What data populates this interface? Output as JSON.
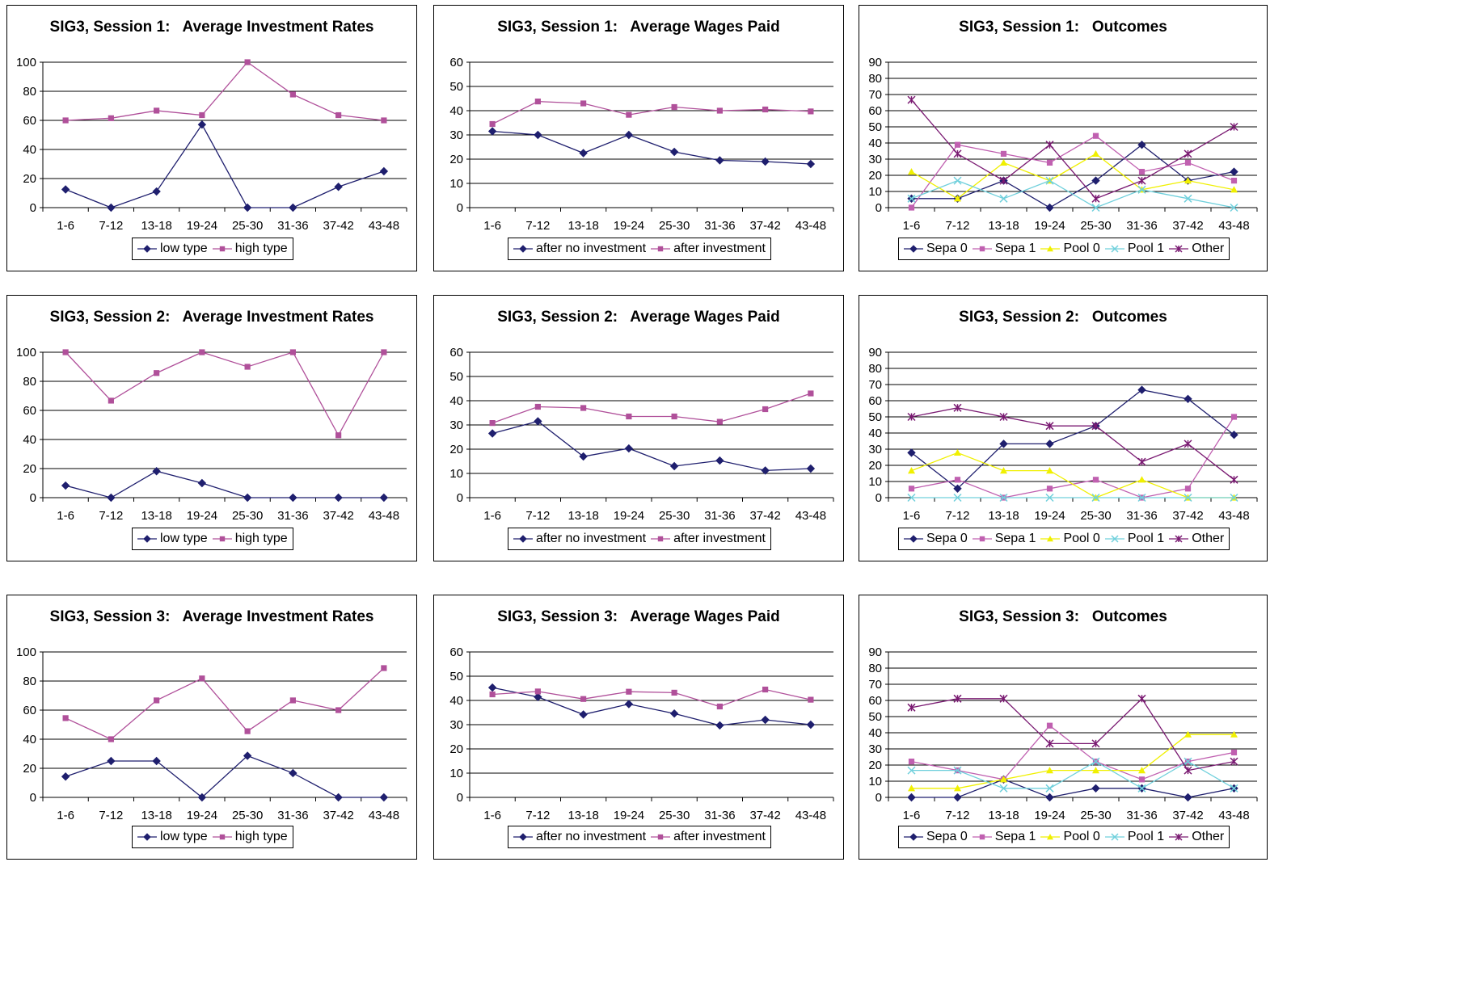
{
  "chart_data": [
    {
      "type": "line",
      "title": "SIG3, Session 1:   Average Investment Rates",
      "categories": [
        "1-6",
        "7-12",
        "13-18",
        "19-24",
        "25-30",
        "31-36",
        "37-42",
        "43-48"
      ],
      "ylim": [
        0,
        100
      ],
      "yticks": [
        0,
        20,
        40,
        60,
        80,
        100
      ],
      "grid": true,
      "legend": "bottom",
      "series": [
        {
          "name": "low type",
          "color": "#1f1f6e",
          "marker": "diamond",
          "values": [
            12.5,
            0,
            11.1,
            57.1,
            0,
            0,
            14.3,
            25
          ]
        },
        {
          "name": "high type",
          "color": "#b0509a",
          "marker": "square",
          "values": [
            60,
            61.5,
            66.7,
            63.6,
            100,
            77.8,
            63.6,
            60
          ]
        }
      ]
    },
    {
      "type": "line",
      "title": "SIG3, Session 1:   Average Wages Paid",
      "categories": [
        "1-6",
        "7-12",
        "13-18",
        "19-24",
        "25-30",
        "31-36",
        "37-42",
        "43-48"
      ],
      "ylim": [
        0,
        60
      ],
      "yticks": [
        0,
        10,
        20,
        30,
        40,
        50,
        60
      ],
      "grid": true,
      "legend": "bottom",
      "series": [
        {
          "name": "after no investment",
          "color": "#1f1f6e",
          "marker": "diamond",
          "values": [
            31.5,
            30,
            22.5,
            30,
            23,
            19.5,
            19,
            18
          ]
        },
        {
          "name": "after investment",
          "color": "#b0509a",
          "marker": "square",
          "values": [
            34.5,
            43.8,
            43,
            38.3,
            41.5,
            40,
            40.5,
            39.7
          ]
        }
      ]
    },
    {
      "type": "line",
      "title": "SIG3, Session 1:   Outcomes",
      "categories": [
        "1-6",
        "7-12",
        "13-18",
        "19-24",
        "25-30",
        "31-36",
        "37-42",
        "43-48"
      ],
      "ylim": [
        0,
        90
      ],
      "yticks": [
        0,
        10,
        20,
        30,
        40,
        50,
        60,
        70,
        80,
        90
      ],
      "grid": true,
      "legend": "bottom",
      "series": [
        {
          "name": "Sepa 0",
          "color": "#1f1f6e",
          "marker": "diamond",
          "values": [
            5.6,
            5.6,
            16.7,
            0,
            16.7,
            38.9,
            16.7,
            22.2
          ]
        },
        {
          "name": "Sepa 1",
          "color": "#c060b0",
          "marker": "square",
          "values": [
            0,
            38.9,
            33.3,
            27.8,
            44.4,
            22.2,
            27.8,
            16.7
          ]
        },
        {
          "name": "Pool 0",
          "color": "#f0f000",
          "marker": "triangle",
          "values": [
            22.2,
            5.6,
            27.8,
            16.7,
            33.3,
            11.1,
            16.7,
            11.1
          ]
        },
        {
          "name": "Pool 1",
          "color": "#70d0dc",
          "marker": "x",
          "values": [
            5.6,
            16.7,
            5.6,
            16.7,
            0,
            11.1,
            5.6,
            0
          ]
        },
        {
          "name": "Other",
          "color": "#7a1a72",
          "marker": "star",
          "values": [
            66.7,
            33.3,
            16.7,
            38.9,
            5.6,
            16.7,
            33.3,
            50
          ]
        }
      ]
    },
    {
      "type": "line",
      "title": "SIG3, Session 2:   Average Investment Rates",
      "categories": [
        "1-6",
        "7-12",
        "13-18",
        "19-24",
        "25-30",
        "31-36",
        "37-42",
        "43-48"
      ],
      "ylim": [
        0,
        100
      ],
      "yticks": [
        0,
        20,
        40,
        60,
        80,
        100
      ],
      "grid": true,
      "legend": "bottom",
      "series": [
        {
          "name": "low type",
          "color": "#1f1f6e",
          "marker": "diamond",
          "values": [
            8.3,
            0,
            18.2,
            10,
            0,
            0,
            0,
            0
          ]
        },
        {
          "name": "high type",
          "color": "#b0509a",
          "marker": "square",
          "values": [
            100,
            66.7,
            85.7,
            100,
            90,
            100,
            42.9,
            100
          ]
        }
      ]
    },
    {
      "type": "line",
      "title": "SIG3, Session 2:   Average Wages Paid",
      "categories": [
        "1-6",
        "7-12",
        "13-18",
        "19-24",
        "25-30",
        "31-36",
        "37-42",
        "43-48"
      ],
      "ylim": [
        0,
        60
      ],
      "yticks": [
        0,
        10,
        20,
        30,
        40,
        50,
        60
      ],
      "grid": true,
      "legend": "bottom",
      "series": [
        {
          "name": "after no investment",
          "color": "#1f1f6e",
          "marker": "diamond",
          "values": [
            26.5,
            31.5,
            17,
            20.3,
            13,
            15.3,
            11.2,
            12
          ]
        },
        {
          "name": "after investment",
          "color": "#b0509a",
          "marker": "square",
          "values": [
            30.8,
            37.5,
            37,
            33.5,
            33.5,
            31.3,
            36.5,
            43
          ]
        }
      ]
    },
    {
      "type": "line",
      "title": "SIG3, Session 2:   Outcomes",
      "categories": [
        "1-6",
        "7-12",
        "13-18",
        "19-24",
        "25-30",
        "31-36",
        "37-42",
        "43-48"
      ],
      "ylim": [
        0,
        90
      ],
      "yticks": [
        0,
        10,
        20,
        30,
        40,
        50,
        60,
        70,
        80,
        90
      ],
      "grid": true,
      "legend": "bottom",
      "series": [
        {
          "name": "Sepa 0",
          "color": "#1f1f6e",
          "marker": "diamond",
          "values": [
            27.8,
            5.6,
            33.3,
            33.3,
            44.4,
            66.7,
            61.1,
            38.9
          ]
        },
        {
          "name": "Sepa 1",
          "color": "#c060b0",
          "marker": "square",
          "values": [
            5.6,
            11.1,
            0,
            5.6,
            11.1,
            0,
            5.6,
            50
          ]
        },
        {
          "name": "Pool 0",
          "color": "#f0f000",
          "marker": "triangle",
          "values": [
            16.7,
            27.8,
            16.7,
            16.7,
            0,
            11.1,
            0,
            0
          ]
        },
        {
          "name": "Pool 1",
          "color": "#70d0dc",
          "marker": "x",
          "values": [
            0,
            0,
            0,
            0,
            0,
            0,
            0,
            0
          ]
        },
        {
          "name": "Other",
          "color": "#7a1a72",
          "marker": "star",
          "values": [
            50,
            55.6,
            50,
            44.4,
            44.4,
            22.2,
            33.3,
            11.1
          ]
        }
      ]
    },
    {
      "type": "line",
      "title": "SIG3, Session 3:   Average Investment Rates",
      "categories": [
        "1-6",
        "7-12",
        "13-18",
        "19-24",
        "25-30",
        "31-36",
        "37-42",
        "43-48"
      ],
      "ylim": [
        0,
        100
      ],
      "yticks": [
        0,
        20,
        40,
        60,
        80,
        100
      ],
      "grid": true,
      "legend": "bottom",
      "series": [
        {
          "name": "low type",
          "color": "#1f1f6e",
          "marker": "diamond",
          "values": [
            14.3,
            25,
            25,
            0,
            28.6,
            16.7,
            0,
            0
          ]
        },
        {
          "name": "high type",
          "color": "#b0509a",
          "marker": "square",
          "values": [
            54.5,
            40,
            66.7,
            81.8,
            45.5,
            66.7,
            60,
            88.9
          ]
        }
      ]
    },
    {
      "type": "line",
      "title": "SIG3, Session 3:   Average Wages Paid",
      "categories": [
        "1-6",
        "7-12",
        "13-18",
        "19-24",
        "25-30",
        "31-36",
        "37-42",
        "43-48"
      ],
      "ylim": [
        0,
        60
      ],
      "yticks": [
        0,
        10,
        20,
        30,
        40,
        50,
        60
      ],
      "grid": true,
      "legend": "bottom",
      "series": [
        {
          "name": "after no investment",
          "color": "#1f1f6e",
          "marker": "diamond",
          "values": [
            45.3,
            41.4,
            34.2,
            38.5,
            34.6,
            29.7,
            32,
            30
          ]
        },
        {
          "name": "after investment",
          "color": "#b0509a",
          "marker": "square",
          "values": [
            42.5,
            43.7,
            40.6,
            43.6,
            43.2,
            37.5,
            44.5,
            40.3
          ]
        }
      ]
    },
    {
      "type": "line",
      "title": "SIG3, Session 3:   Outcomes",
      "categories": [
        "1-6",
        "7-12",
        "13-18",
        "19-24",
        "25-30",
        "31-36",
        "37-42",
        "43-48"
      ],
      "ylim": [
        0,
        90
      ],
      "yticks": [
        0,
        10,
        20,
        30,
        40,
        50,
        60,
        70,
        80,
        90
      ],
      "grid": true,
      "legend": "bottom",
      "series": [
        {
          "name": "Sepa 0",
          "color": "#1f1f6e",
          "marker": "diamond",
          "values": [
            0,
            0,
            11.1,
            0,
            5.6,
            5.6,
            0,
            5.6
          ]
        },
        {
          "name": "Sepa 1",
          "color": "#c060b0",
          "marker": "square",
          "values": [
            22.2,
            16.7,
            11.1,
            44.4,
            22.2,
            11.1,
            22.2,
            27.8
          ]
        },
        {
          "name": "Pool 0",
          "color": "#f0f000",
          "marker": "triangle",
          "values": [
            5.6,
            5.6,
            11.1,
            16.7,
            16.7,
            16.7,
            38.9,
            38.9
          ]
        },
        {
          "name": "Pool 1",
          "color": "#70d0dc",
          "marker": "x",
          "values": [
            16.7,
            16.7,
            5.6,
            5.6,
            22.2,
            5.6,
            22.2,
            5.6
          ]
        },
        {
          "name": "Other",
          "color": "#7a1a72",
          "marker": "star",
          "values": [
            55.6,
            61.1,
            61.1,
            33.3,
            33.3,
            61.1,
            16.7,
            22.2
          ]
        }
      ]
    }
  ]
}
